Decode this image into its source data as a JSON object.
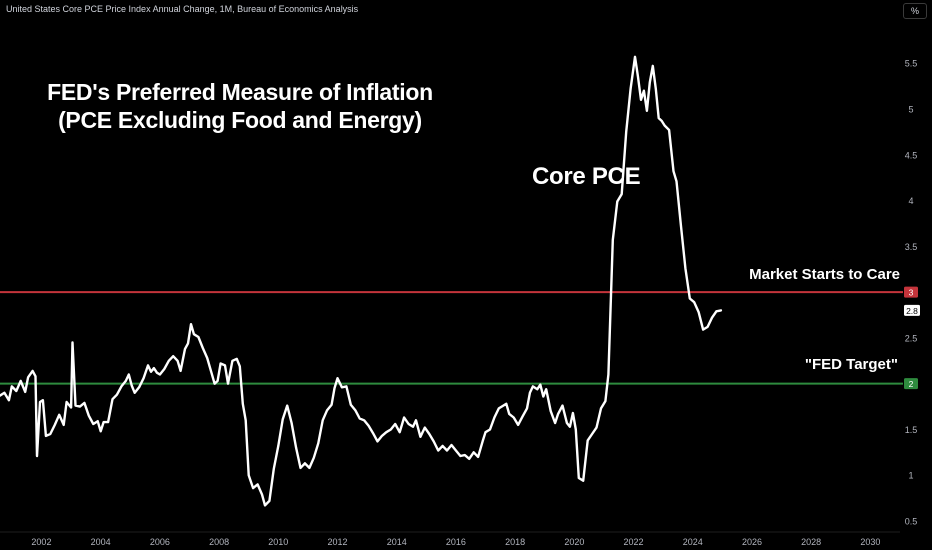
{
  "header": {
    "title": "United States Core PCE Price Index Annual Change, 1M, Bureau of Economics Analysis",
    "unit_button": "%"
  },
  "annotations": {
    "title_line1": "FED's Preferred Measure of Inflation",
    "title_line2": "(PCE Excluding Food and Energy)",
    "series_label": "Core PCE",
    "market_line_label": "Market Starts to Care",
    "fed_line_label": "\"FED Target\""
  },
  "colors": {
    "background": "#000000",
    "series": "#ffffff",
    "market_line": "#c4343b",
    "fed_line": "#2e8b3e",
    "axis_text": "#b2b5be"
  },
  "chart_data": {
    "type": "line",
    "x_unit": "year",
    "xlim": [
      2000.6,
      2031.0
    ],
    "ylim": [
      0.38,
      5.95
    ],
    "x_ticks": [
      "2002",
      "2004",
      "2006",
      "2008",
      "2010",
      "2012",
      "2014",
      "2016",
      "2018",
      "2020",
      "2022",
      "2024",
      "2026",
      "2028",
      "2030"
    ],
    "y_ticks": [
      "0.5",
      "1",
      "1.5",
      "2",
      "2.5",
      "3",
      "3.5",
      "4",
      "4.5",
      "5",
      "5.5"
    ],
    "horizontal_lines": [
      {
        "value": 3,
        "label": "3",
        "name": "Market Starts to Care",
        "color": "#c4343b"
      },
      {
        "value": 2,
        "label": "2",
        "name": "\"FED Target\"",
        "color": "#2e8b3e"
      }
    ],
    "last_value_label": "2.8",
    "series": [
      {
        "points": [
          [
            2000.6,
            1.87
          ],
          [
            2000.75,
            1.9
          ],
          [
            2000.9,
            1.82
          ],
          [
            2001.0,
            1.97
          ],
          [
            2001.15,
            1.92
          ],
          [
            2001.3,
            2.03
          ],
          [
            2001.45,
            1.91
          ],
          [
            2001.55,
            2.07
          ],
          [
            2001.7,
            2.14
          ],
          [
            2001.8,
            2.08
          ],
          [
            2001.85,
            1.21
          ],
          [
            2001.95,
            1.8
          ],
          [
            2002.05,
            1.82
          ],
          [
            2002.15,
            1.43
          ],
          [
            2002.3,
            1.45
          ],
          [
            2002.45,
            1.55
          ],
          [
            2002.6,
            1.66
          ],
          [
            2002.75,
            1.55
          ],
          [
            2002.85,
            1.8
          ],
          [
            2003.0,
            1.74
          ],
          [
            2003.05,
            2.45
          ],
          [
            2003.15,
            1.76
          ],
          [
            2003.3,
            1.75
          ],
          [
            2003.45,
            1.79
          ],
          [
            2003.6,
            1.65
          ],
          [
            2003.75,
            1.56
          ],
          [
            2003.9,
            1.59
          ],
          [
            2004.0,
            1.48
          ],
          [
            2004.1,
            1.58
          ],
          [
            2004.25,
            1.58
          ],
          [
            2004.4,
            1.83
          ],
          [
            2004.55,
            1.88
          ],
          [
            2004.7,
            1.97
          ],
          [
            2004.85,
            2.03
          ],
          [
            2004.95,
            2.1
          ],
          [
            2005.05,
            1.98
          ],
          [
            2005.15,
            1.9
          ],
          [
            2005.3,
            1.96
          ],
          [
            2005.45,
            2.06
          ],
          [
            2005.6,
            2.2
          ],
          [
            2005.7,
            2.13
          ],
          [
            2005.8,
            2.17
          ],
          [
            2005.9,
            2.12
          ],
          [
            2006.0,
            2.1
          ],
          [
            2006.15,
            2.16
          ],
          [
            2006.3,
            2.25
          ],
          [
            2006.45,
            2.3
          ],
          [
            2006.6,
            2.25
          ],
          [
            2006.7,
            2.14
          ],
          [
            2006.85,
            2.38
          ],
          [
            2006.95,
            2.44
          ],
          [
            2007.05,
            2.65
          ],
          [
            2007.15,
            2.54
          ],
          [
            2007.3,
            2.51
          ],
          [
            2007.45,
            2.39
          ],
          [
            2007.6,
            2.28
          ],
          [
            2007.75,
            2.11
          ],
          [
            2007.85,
            2.0
          ],
          [
            2007.95,
            2.03
          ],
          [
            2008.05,
            2.22
          ],
          [
            2008.2,
            2.2
          ],
          [
            2008.3,
            2.0
          ],
          [
            2008.45,
            2.25
          ],
          [
            2008.6,
            2.27
          ],
          [
            2008.7,
            2.19
          ],
          [
            2008.8,
            1.78
          ],
          [
            2008.9,
            1.6
          ],
          [
            2009.0,
            1.0
          ],
          [
            2009.15,
            0.86
          ],
          [
            2009.3,
            0.9
          ],
          [
            2009.45,
            0.79
          ],
          [
            2009.55,
            0.67
          ],
          [
            2009.7,
            0.72
          ],
          [
            2009.85,
            1.07
          ],
          [
            2010.0,
            1.32
          ],
          [
            2010.15,
            1.61
          ],
          [
            2010.3,
            1.76
          ],
          [
            2010.45,
            1.57
          ],
          [
            2010.6,
            1.3
          ],
          [
            2010.75,
            1.08
          ],
          [
            2010.9,
            1.13
          ],
          [
            2011.05,
            1.08
          ],
          [
            2011.2,
            1.19
          ],
          [
            2011.35,
            1.35
          ],
          [
            2011.5,
            1.6
          ],
          [
            2011.65,
            1.71
          ],
          [
            2011.8,
            1.77
          ],
          [
            2011.9,
            1.95
          ],
          [
            2012.0,
            2.06
          ],
          [
            2012.15,
            1.96
          ],
          [
            2012.3,
            1.97
          ],
          [
            2012.45,
            1.77
          ],
          [
            2012.6,
            1.71
          ],
          [
            2012.75,
            1.62
          ],
          [
            2012.9,
            1.6
          ],
          [
            2013.05,
            1.54
          ],
          [
            2013.2,
            1.46
          ],
          [
            2013.35,
            1.37
          ],
          [
            2013.5,
            1.43
          ],
          [
            2013.65,
            1.47
          ],
          [
            2013.8,
            1.5
          ],
          [
            2013.95,
            1.56
          ],
          [
            2014.1,
            1.47
          ],
          [
            2014.25,
            1.63
          ],
          [
            2014.4,
            1.56
          ],
          [
            2014.55,
            1.53
          ],
          [
            2014.65,
            1.6
          ],
          [
            2014.8,
            1.42
          ],
          [
            2014.95,
            1.52
          ],
          [
            2015.1,
            1.45
          ],
          [
            2015.25,
            1.37
          ],
          [
            2015.4,
            1.27
          ],
          [
            2015.55,
            1.32
          ],
          [
            2015.7,
            1.27
          ],
          [
            2015.85,
            1.33
          ],
          [
            2016.0,
            1.27
          ],
          [
            2016.15,
            1.21
          ],
          [
            2016.3,
            1.22
          ],
          [
            2016.45,
            1.18
          ],
          [
            2016.6,
            1.25
          ],
          [
            2016.75,
            1.2
          ],
          [
            2016.9,
            1.37
          ],
          [
            2017.0,
            1.47
          ],
          [
            2017.15,
            1.5
          ],
          [
            2017.3,
            1.63
          ],
          [
            2017.45,
            1.73
          ],
          [
            2017.6,
            1.76
          ],
          [
            2017.7,
            1.78
          ],
          [
            2017.8,
            1.67
          ],
          [
            2017.95,
            1.63
          ],
          [
            2018.1,
            1.55
          ],
          [
            2018.25,
            1.64
          ],
          [
            2018.4,
            1.73
          ],
          [
            2018.5,
            1.9
          ],
          [
            2018.6,
            1.97
          ],
          [
            2018.75,
            1.94
          ],
          [
            2018.85,
            1.99
          ],
          [
            2018.95,
            1.86
          ],
          [
            2019.05,
            1.94
          ],
          [
            2019.2,
            1.7
          ],
          [
            2019.35,
            1.57
          ],
          [
            2019.45,
            1.67
          ],
          [
            2019.6,
            1.76
          ],
          [
            2019.75,
            1.57
          ],
          [
            2019.85,
            1.53
          ],
          [
            2019.95,
            1.68
          ],
          [
            2020.05,
            1.5
          ],
          [
            2020.15,
            0.97
          ],
          [
            2020.3,
            0.94
          ],
          [
            2020.45,
            1.38
          ],
          [
            2020.6,
            1.45
          ],
          [
            2020.75,
            1.52
          ],
          [
            2020.9,
            1.73
          ],
          [
            2021.05,
            1.81
          ],
          [
            2021.15,
            2.1
          ],
          [
            2021.3,
            3.57
          ],
          [
            2021.45,
            3.99
          ],
          [
            2021.6,
            4.07
          ],
          [
            2021.75,
            4.75
          ],
          [
            2021.9,
            5.22
          ],
          [
            2022.05,
            5.57
          ],
          [
            2022.15,
            5.35
          ],
          [
            2022.25,
            5.1
          ],
          [
            2022.35,
            5.2
          ],
          [
            2022.45,
            4.98
          ],
          [
            2022.55,
            5.29
          ],
          [
            2022.65,
            5.47
          ],
          [
            2022.75,
            5.22
          ],
          [
            2022.85,
            4.9
          ],
          [
            2022.95,
            4.87
          ],
          [
            2023.05,
            4.82
          ],
          [
            2023.2,
            4.77
          ],
          [
            2023.35,
            4.32
          ],
          [
            2023.45,
            4.21
          ],
          [
            2023.6,
            3.73
          ],
          [
            2023.75,
            3.26
          ],
          [
            2023.9,
            2.93
          ],
          [
            2024.05,
            2.89
          ],
          [
            2024.2,
            2.78
          ],
          [
            2024.35,
            2.59
          ],
          [
            2024.5,
            2.62
          ],
          [
            2024.65,
            2.72
          ],
          [
            2024.8,
            2.79
          ],
          [
            2024.95,
            2.8
          ]
        ]
      }
    ]
  }
}
